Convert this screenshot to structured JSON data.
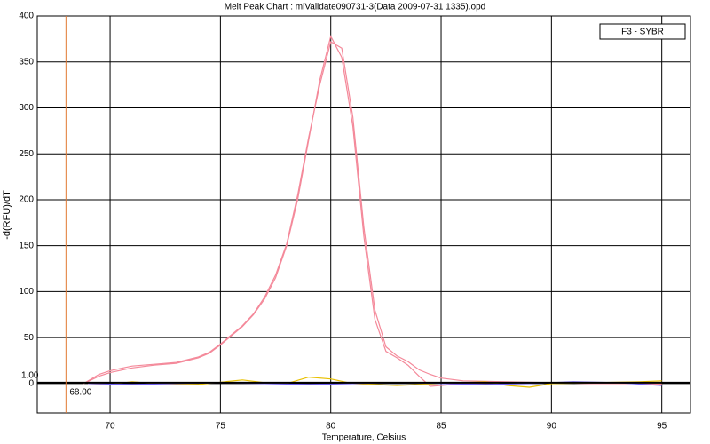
{
  "chart_data": {
    "type": "line",
    "title": "Melt Peak Chart : miValidate090731-3(Data 2009-07-31 1335).opd",
    "x_label": "Temperature, Celsius",
    "y_label": "-d(RFU)/dT",
    "legend_text": "F3 - SYBR",
    "xlim": [
      66.7,
      96.3
    ],
    "ylim": [
      -32,
      400
    ],
    "xticks": [
      70,
      75,
      80,
      85,
      90,
      95
    ],
    "yticks": [
      0,
      50,
      100,
      150,
      200,
      250,
      300,
      350,
      400
    ],
    "grid": true,
    "threshold": {
      "value": 1,
      "label": "1.00"
    },
    "marker_x": {
      "value": 68,
      "label": "68.00"
    },
    "threshold_color": "#000000",
    "marker_color": "#e07830",
    "series": [
      {
        "color": "#f4899a",
        "x": [
          68.8,
          69.5,
          70,
          71,
          72,
          73,
          74,
          74.5,
          75,
          75.5,
          76,
          76.5,
          77,
          77.5,
          78,
          78.5,
          79,
          79.5,
          80,
          80.5,
          81,
          81.5,
          82,
          82.5,
          83,
          83.5,
          84,
          84.5,
          85,
          86,
          88,
          90,
          92,
          94,
          95
        ],
        "values": [
          0,
          8,
          12,
          17,
          20,
          22,
          28,
          33,
          42,
          52,
          62,
          75,
          92,
          115,
          150,
          200,
          265,
          330,
          378,
          355,
          280,
          160,
          70,
          35,
          28,
          20,
          8,
          -3,
          -2,
          0,
          1,
          1,
          0,
          0,
          0
        ]
      },
      {
        "color": "#f4899a",
        "x": [
          68.8,
          69.5,
          70,
          71,
          72,
          73,
          74,
          74.5,
          75,
          75.5,
          76,
          76.5,
          77,
          77.5,
          78,
          78.5,
          79,
          79.5,
          80,
          80.5,
          81,
          81.5,
          82,
          82.5,
          83,
          83.5,
          84,
          84.5,
          85,
          86,
          88,
          90,
          92,
          94,
          95
        ],
        "values": [
          0,
          10,
          14,
          19,
          21,
          23,
          29,
          34,
          43,
          53,
          63,
          76,
          94,
          118,
          152,
          205,
          268,
          325,
          372,
          365,
          290,
          170,
          80,
          40,
          30,
          24,
          15,
          10,
          6,
          3,
          2,
          1,
          0,
          0,
          -1
        ]
      },
      {
        "color": "#e8c000",
        "x": [
          69,
          70,
          71,
          72,
          74,
          76,
          77,
          78,
          79,
          80,
          81,
          83,
          85,
          87,
          88,
          89,
          90,
          92,
          94,
          95
        ],
        "values": [
          0,
          -1,
          2,
          0,
          -1,
          4,
          1,
          0,
          7,
          5,
          0,
          -2,
          0,
          2,
          -2,
          -4,
          0,
          1,
          2,
          3
        ]
      },
      {
        "color": "#7060f0",
        "x": [
          69,
          71,
          73,
          75,
          77,
          79,
          81,
          83,
          85,
          87,
          89,
          91,
          93,
          95
        ],
        "values": [
          0,
          -1,
          0,
          1,
          0,
          -1,
          0,
          1,
          0,
          -1,
          0,
          2,
          1,
          -2
        ]
      }
    ]
  }
}
